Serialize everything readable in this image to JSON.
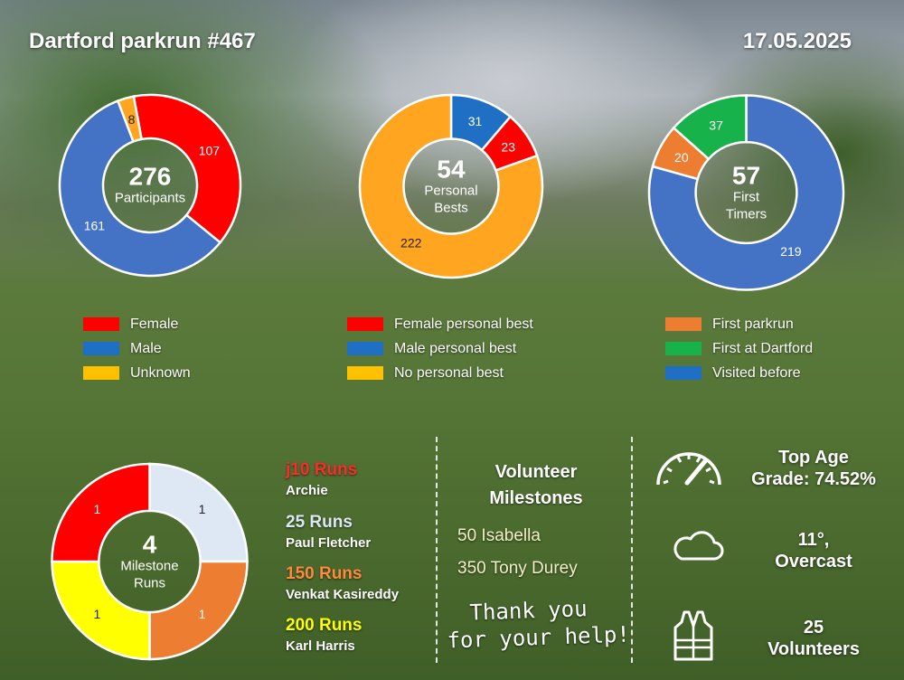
{
  "header": {
    "title": "Dartford parkrun #467",
    "date": "17.05.2025"
  },
  "chart_data": [
    {
      "type": "pie",
      "center_value": "276",
      "center_label": [
        "Participants"
      ],
      "categories": [
        "Female",
        "Male",
        "Unknown"
      ],
      "values": [
        107,
        161,
        8
      ],
      "colors": [
        "#ff0000",
        "#4472c4",
        "#ffa51f"
      ],
      "start_offset": -8
    },
    {
      "type": "pie",
      "center_value": "54",
      "center_label": [
        "Personal",
        "Bests"
      ],
      "categories": [
        "Male personal best",
        "Female personal best",
        "No personal best"
      ],
      "values": [
        31,
        23,
        222
      ],
      "colors": [
        "#1f6fc5",
        "#ff0000",
        "#ffa51f"
      ],
      "start_offset": 0
    },
    {
      "type": "pie",
      "center_value": "57",
      "center_label": [
        "First",
        "Timers"
      ],
      "categories": [
        "Visited before",
        "First parkrun",
        "First at Dartford"
      ],
      "values": [
        219,
        20,
        37
      ],
      "colors": [
        "#4472c4",
        "#ed7d31",
        "#18b24b"
      ],
      "start_offset": 0
    },
    {
      "type": "pie",
      "center_value": "4",
      "center_label": [
        "Milestone",
        "Runs"
      ],
      "categories": [
        "25 Runs",
        "150 Runs",
        "200 Runs",
        "j10 Runs"
      ],
      "values": [
        1,
        1,
        1,
        1
      ],
      "colors": [
        "#dde8f4",
        "#ed7d31",
        "#ffff00",
        "#ff0000"
      ],
      "start_offset": 0
    }
  ],
  "legends": [
    [
      {
        "label": "Female",
        "color": "#ff0000"
      },
      {
        "label": "Male",
        "color": "#1f6fc5"
      },
      {
        "label": "Unknown",
        "color": "#ffc000"
      }
    ],
    [
      {
        "label": "Female personal best",
        "color": "#ff0000"
      },
      {
        "label": "Male personal best",
        "color": "#1f6fc5"
      },
      {
        "label": "No personal best",
        "color": "#ffc000"
      }
    ],
    [
      {
        "label": "First parkrun",
        "color": "#ed7d31"
      },
      {
        "label": "First at Dartford",
        "color": "#18b24b"
      },
      {
        "label": "Visited before",
        "color": "#1f6fc5"
      }
    ]
  ],
  "milestones": [
    {
      "title": "j10 Runs",
      "name": "Archie",
      "color": "#ff2a2a"
    },
    {
      "title": "25 Runs",
      "name": "Paul Fletcher",
      "color": "#dde8f4"
    },
    {
      "title": "150 Runs",
      "name": "Venkat Kasireddy",
      "color": "#ff8a3a"
    },
    {
      "title": "200 Runs",
      "name": "Karl Harris",
      "color": "#ffff00"
    }
  ],
  "volunteer_milestones": {
    "title": [
      "Volunteer",
      "Milestones"
    ],
    "items": [
      "50 Isabella",
      "350 Tony Durey"
    ],
    "thanks": [
      "Thank you",
      "for your help!"
    ]
  },
  "stats": {
    "age_grade": [
      "Top Age",
      "Grade: 74.52%"
    ],
    "weather": [
      "11°,",
      "Overcast"
    ],
    "volunteers": [
      "25",
      "Volunteers"
    ]
  },
  "icons": {
    "age_grade": "speedometer-icon",
    "weather": "cloud-icon",
    "volunteers": "hi-vis-vest-icon"
  }
}
